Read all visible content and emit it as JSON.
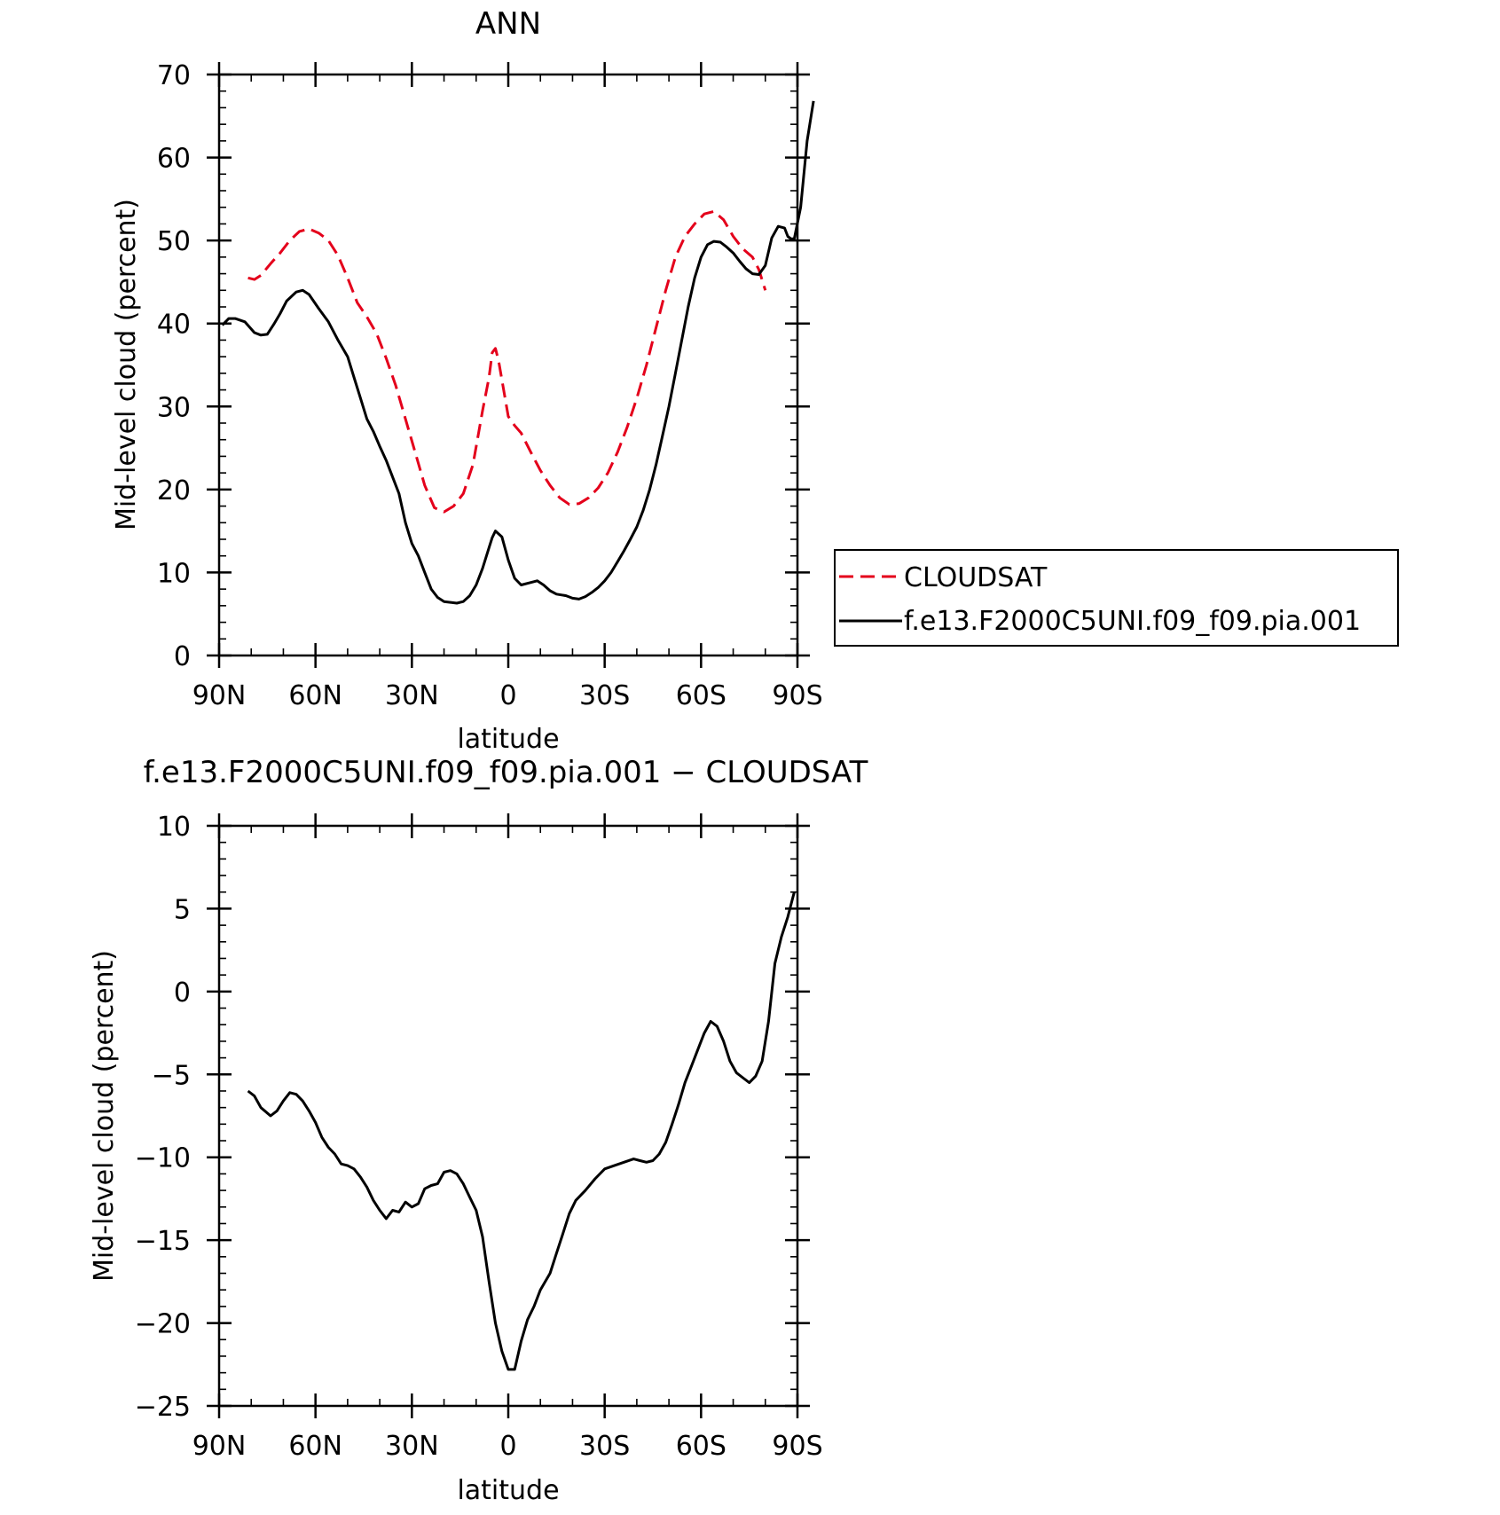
{
  "chart_data": [
    {
      "type": "line",
      "title": "ANN",
      "xlabel": "latitude",
      "ylabel": "Mid-level cloud (percent)",
      "xticks": [
        "90N",
        "60N",
        "30N",
        "0",
        "30S",
        "60S",
        "90S"
      ],
      "yticks": [
        "0",
        "10",
        "20",
        "30",
        "40",
        "50",
        "60",
        "70"
      ],
      "xlim": [
        90,
        -90
      ],
      "ylim": [
        0,
        70
      ],
      "legend": "right",
      "series": [
        {
          "name": "CLOUDSAT",
          "color": "#e4001b",
          "dash": "dashed",
          "points": [
            [
              81,
              45.5
            ],
            [
              79,
              45.3
            ],
            [
              77,
              45.8
            ],
            [
              74,
              47.2
            ],
            [
              71,
              48.5
            ],
            [
              68,
              50.0
            ],
            [
              65,
              51.1
            ],
            [
              62,
              51.4
            ],
            [
              59,
              50.9
            ],
            [
              56,
              50.0
            ],
            [
              53,
              48.2
            ],
            [
              50,
              45.5
            ],
            [
              47,
              42.5
            ],
            [
              44,
              40.8
            ],
            [
              41,
              38.8
            ],
            [
              38,
              35.8
            ],
            [
              35,
              32.5
            ],
            [
              32,
              28.5
            ],
            [
              29,
              24.5
            ],
            [
              26,
              20.5
            ],
            [
              23,
              17.8
            ],
            [
              20,
              17.3
            ],
            [
              17,
              18.0
            ],
            [
              14,
              19.5
            ],
            [
              11,
              23.0
            ],
            [
              8,
              29.5
            ],
            [
              6,
              33.5
            ],
            [
              5,
              36.5
            ],
            [
              4,
              37.0
            ],
            [
              3,
              35.5
            ],
            [
              1,
              31.0
            ],
            [
              0,
              28.8
            ],
            [
              -2,
              27.7
            ],
            [
              -4,
              26.8
            ],
            [
              -7,
              24.5
            ],
            [
              -10,
              22.3
            ],
            [
              -13,
              20.5
            ],
            [
              -16,
              19.0
            ],
            [
              -19,
              18.2
            ],
            [
              -22,
              18.3
            ],
            [
              -25,
              19.0
            ],
            [
              -28,
              20.2
            ],
            [
              -31,
              22.0
            ],
            [
              -34,
              24.5
            ],
            [
              -37,
              27.5
            ],
            [
              -40,
              31.0
            ],
            [
              -43,
              35.0
            ],
            [
              -46,
              39.5
            ],
            [
              -49,
              44.0
            ],
            [
              -52,
              48.0
            ],
            [
              -55,
              50.5
            ],
            [
              -58,
              52.0
            ],
            [
              -61,
              53.2
            ],
            [
              -64,
              53.5
            ],
            [
              -67,
              52.5
            ],
            [
              -70,
              50.5
            ],
            [
              -73,
              49.0
            ],
            [
              -76,
              48.0
            ],
            [
              -78,
              46.5
            ],
            [
              -80,
              44.0
            ]
          ]
        },
        {
          "name": "f.e13.F2000C5UNI.f09_f09.pia.001",
          "color": "#000000",
          "dash": "solid",
          "points": [
            [
              89,
              39.8
            ],
            [
              87,
              40.6
            ],
            [
              85,
              40.6
            ],
            [
              82,
              40.2
            ],
            [
              79,
              38.9
            ],
            [
              77,
              38.6
            ],
            [
              75,
              38.7
            ],
            [
              73,
              39.9
            ],
            [
              71,
              41.2
            ],
            [
              69,
              42.7
            ],
            [
              66,
              43.8
            ],
            [
              64,
              44.0
            ],
            [
              62,
              43.5
            ],
            [
              59,
              41.8
            ],
            [
              56,
              40.2
            ],
            [
              53,
              38.0
            ],
            [
              50,
              36.0
            ],
            [
              48,
              33.5
            ],
            [
              46,
              31.0
            ],
            [
              44,
              28.5
            ],
            [
              42,
              27.0
            ],
            [
              40,
              25.2
            ],
            [
              38,
              23.5
            ],
            [
              36,
              21.5
            ],
            [
              34,
              19.5
            ],
            [
              32,
              16.0
            ],
            [
              30,
              13.5
            ],
            [
              28,
              12.0
            ],
            [
              26,
              10.0
            ],
            [
              24,
              8.0
            ],
            [
              22,
              7.0
            ],
            [
              20,
              6.5
            ],
            [
              18,
              6.4
            ],
            [
              16,
              6.3
            ],
            [
              14,
              6.5
            ],
            [
              12,
              7.2
            ],
            [
              10,
              8.5
            ],
            [
              8,
              10.5
            ],
            [
              6,
              13.0
            ],
            [
              5,
              14.2
            ],
            [
              4,
              15.0
            ],
            [
              2,
              14.3
            ],
            [
              0,
              11.5
            ],
            [
              -2,
              9.3
            ],
            [
              -4,
              8.5
            ],
            [
              -7,
              8.8
            ],
            [
              -9,
              9.0
            ],
            [
              -11,
              8.5
            ],
            [
              -13,
              7.8
            ],
            [
              -15,
              7.4
            ],
            [
              -18,
              7.2
            ],
            [
              -20,
              6.9
            ],
            [
              -22,
              6.8
            ],
            [
              -24,
              7.1
            ],
            [
              -26,
              7.6
            ],
            [
              -28,
              8.2
            ],
            [
              -30,
              9.0
            ],
            [
              -32,
              10.0
            ],
            [
              -34,
              11.3
            ],
            [
              -36,
              12.6
            ],
            [
              -38,
              14.0
            ],
            [
              -40,
              15.5
            ],
            [
              -42,
              17.5
            ],
            [
              -44,
              20.0
            ],
            [
              -46,
              23.0
            ],
            [
              -48,
              26.5
            ],
            [
              -50,
              30.0
            ],
            [
              -52,
              34.0
            ],
            [
              -54,
              38.0
            ],
            [
              -56,
              42.0
            ],
            [
              -58,
              45.5
            ],
            [
              -60,
              48.0
            ],
            [
              -62,
              49.5
            ],
            [
              -64,
              49.9
            ],
            [
              -66,
              49.8
            ],
            [
              -68,
              49.2
            ],
            [
              -70,
              48.5
            ],
            [
              -72,
              47.5
            ],
            [
              -74,
              46.6
            ],
            [
              -76,
              46.0
            ],
            [
              -78,
              45.9
            ],
            [
              -80,
              47.0
            ],
            [
              -82,
              50.3
            ],
            [
              -84,
              51.7
            ],
            [
              -86,
              51.5
            ],
            [
              -87,
              50.5
            ],
            [
              -88,
              50.2
            ],
            [
              -89,
              50.2
            ],
            [
              -91,
              54.0
            ],
            [
              -93,
              62.0
            ],
            [
              -95,
              66.8
            ]
          ]
        }
      ]
    },
    {
      "type": "line",
      "title": "f.e13.F2000C5UNI.f09_f09.pia.001 − CLOUDSAT",
      "xlabel": "latitude",
      "ylabel": "Mid-level cloud (percent)",
      "xticks": [
        "90N",
        "60N",
        "30N",
        "0",
        "30S",
        "60S",
        "90S"
      ],
      "yticks": [
        "10",
        "5",
        "0",
        "−5",
        "−10",
        "−15",
        "−20",
        "−25"
      ],
      "xlim": [
        90,
        -90
      ],
      "ylim": [
        -25,
        10
      ],
      "series": [
        {
          "color": "#000000",
          "dash": "solid",
          "points": [
            [
              81,
              -6.0
            ],
            [
              79,
              -6.3
            ],
            [
              77,
              -7.0
            ],
            [
              74,
              -7.5
            ],
            [
              72,
              -7.2
            ],
            [
              70,
              -6.6
            ],
            [
              68,
              -6.1
            ],
            [
              66,
              -6.2
            ],
            [
              64,
              -6.6
            ],
            [
              62,
              -7.2
            ],
            [
              60,
              -7.9
            ],
            [
              58,
              -8.8
            ],
            [
              56,
              -9.4
            ],
            [
              54,
              -9.8
            ],
            [
              52,
              -10.4
            ],
            [
              50,
              -10.5
            ],
            [
              48,
              -10.7
            ],
            [
              46,
              -11.2
            ],
            [
              44,
              -11.8
            ],
            [
              42,
              -12.6
            ],
            [
              40,
              -13.2
            ],
            [
              38,
              -13.7
            ],
            [
              36,
              -13.2
            ],
            [
              34,
              -13.3
            ],
            [
              32,
              -12.7
            ],
            [
              30,
              -13.0
            ],
            [
              28,
              -12.8
            ],
            [
              26,
              -11.9
            ],
            [
              24,
              -11.7
            ],
            [
              22,
              -11.6
            ],
            [
              20,
              -10.9
            ],
            [
              18,
              -10.8
            ],
            [
              16,
              -11.0
            ],
            [
              14,
              -11.6
            ],
            [
              12,
              -12.4
            ],
            [
              10,
              -13.2
            ],
            [
              8,
              -14.8
            ],
            [
              6,
              -17.5
            ],
            [
              4,
              -20.0
            ],
            [
              2,
              -21.7
            ],
            [
              0,
              -22.8
            ],
            [
              -2,
              -22.8
            ],
            [
              -4,
              -21.1
            ],
            [
              -6,
              -19.8
            ],
            [
              -8,
              -19.0
            ],
            [
              -10,
              -18.0
            ],
            [
              -13,
              -17.0
            ],
            [
              -15,
              -15.8
            ],
            [
              -17,
              -14.6
            ],
            [
              -19,
              -13.4
            ],
            [
              -21,
              -12.6
            ],
            [
              -24,
              -12.0
            ],
            [
              -27,
              -11.3
            ],
            [
              -30,
              -10.7
            ],
            [
              -33,
              -10.5
            ],
            [
              -36,
              -10.3
            ],
            [
              -39,
              -10.1
            ],
            [
              -41,
              -10.2
            ],
            [
              -43,
              -10.3
            ],
            [
              -45,
              -10.2
            ],
            [
              -47,
              -9.8
            ],
            [
              -49,
              -9.1
            ],
            [
              -51,
              -8.0
            ],
            [
              -53,
              -6.8
            ],
            [
              -55,
              -5.5
            ],
            [
              -57,
              -4.5
            ],
            [
              -59,
              -3.5
            ],
            [
              -61,
              -2.5
            ],
            [
              -63,
              -1.8
            ],
            [
              -65,
              -2.1
            ],
            [
              -67,
              -3.0
            ],
            [
              -69,
              -4.2
            ],
            [
              -71,
              -4.9
            ],
            [
              -73,
              -5.2
            ],
            [
              -75,
              -5.5
            ],
            [
              -77,
              -5.1
            ],
            [
              -79,
              -4.2
            ],
            [
              -81,
              -1.8
            ],
            [
              -83,
              1.7
            ],
            [
              -85,
              3.3
            ],
            [
              -87,
              4.5
            ],
            [
              -89,
              6.0
            ]
          ]
        }
      ]
    }
  ]
}
